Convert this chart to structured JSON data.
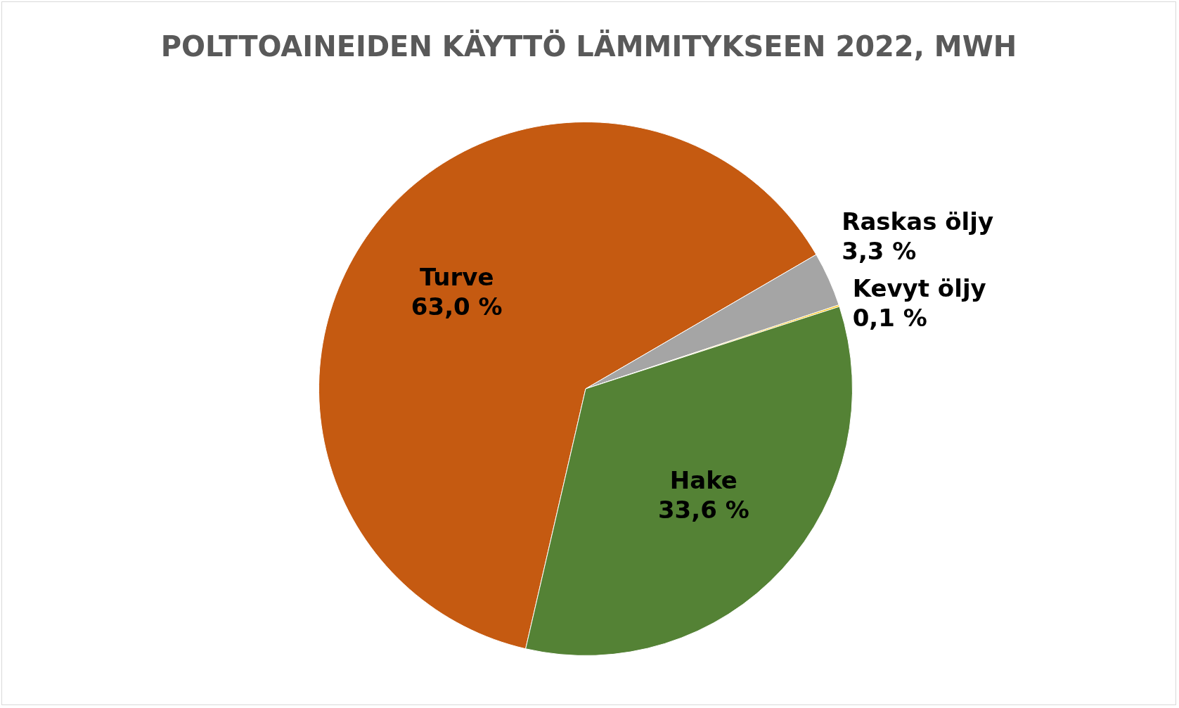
{
  "chart_data": {
    "type": "pie",
    "title": "POLTTOAINEIDEN KÄYTTÖ LÄMMITYKSEEN 2022, MWH",
    "categories": [
      "Turve",
      "Raskas öljy",
      "Kevyt öljy",
      "Hake"
    ],
    "values": [
      63.0,
      3.3,
      0.1,
      33.6
    ],
    "colors": [
      "#c55a11",
      "#a5a5a5",
      "#ffc000",
      "#548235"
    ],
    "value_labels": [
      "63,0 %",
      "3,3 %",
      "0,1 %",
      "33,6 %"
    ],
    "legend": false
  }
}
